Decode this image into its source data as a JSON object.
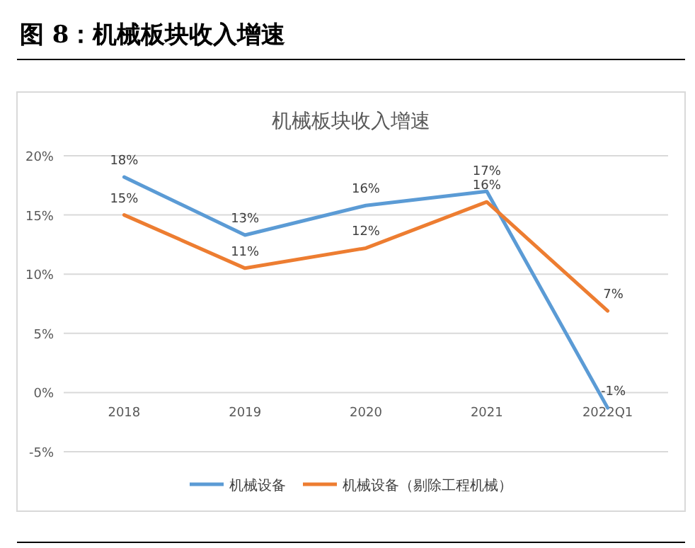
{
  "chart_data": {
    "type": "line",
    "title": "机械板块收入增速",
    "annotations": [
      "图 8：机械板块收入增速"
    ],
    "categories": [
      "2018",
      "2019",
      "2020",
      "2021",
      "2022Q1"
    ],
    "series": [
      {
        "name": "机械设备",
        "color": "#5b9bd5",
        "values": [
          18.2,
          13.3,
          15.8,
          17.0,
          -1.3
        ],
        "value_labels": [
          "18%",
          "13%",
          "16%",
          "17%",
          "-1%"
        ]
      },
      {
        "name": "机械设备（剔除工程机械）",
        "color": "#ed7d31",
        "values": [
          15.0,
          10.5,
          12.2,
          16.1,
          6.9
        ],
        "value_labels": [
          "15%",
          "11%",
          "12%",
          "16%",
          "7%"
        ]
      }
    ],
    "ylim": [
      -5,
      20
    ],
    "yticks": [
      {
        "value": -5,
        "label": "-5%"
      },
      {
        "value": 0,
        "label": "0%"
      },
      {
        "value": 5,
        "label": "5%"
      },
      {
        "value": 10,
        "label": "10%"
      },
      {
        "value": 15,
        "label": "15%"
      },
      {
        "value": 20,
        "label": "20%"
      }
    ],
    "grid": "y",
    "legend": "bottom",
    "marker": "none",
    "line_style": "solid"
  }
}
